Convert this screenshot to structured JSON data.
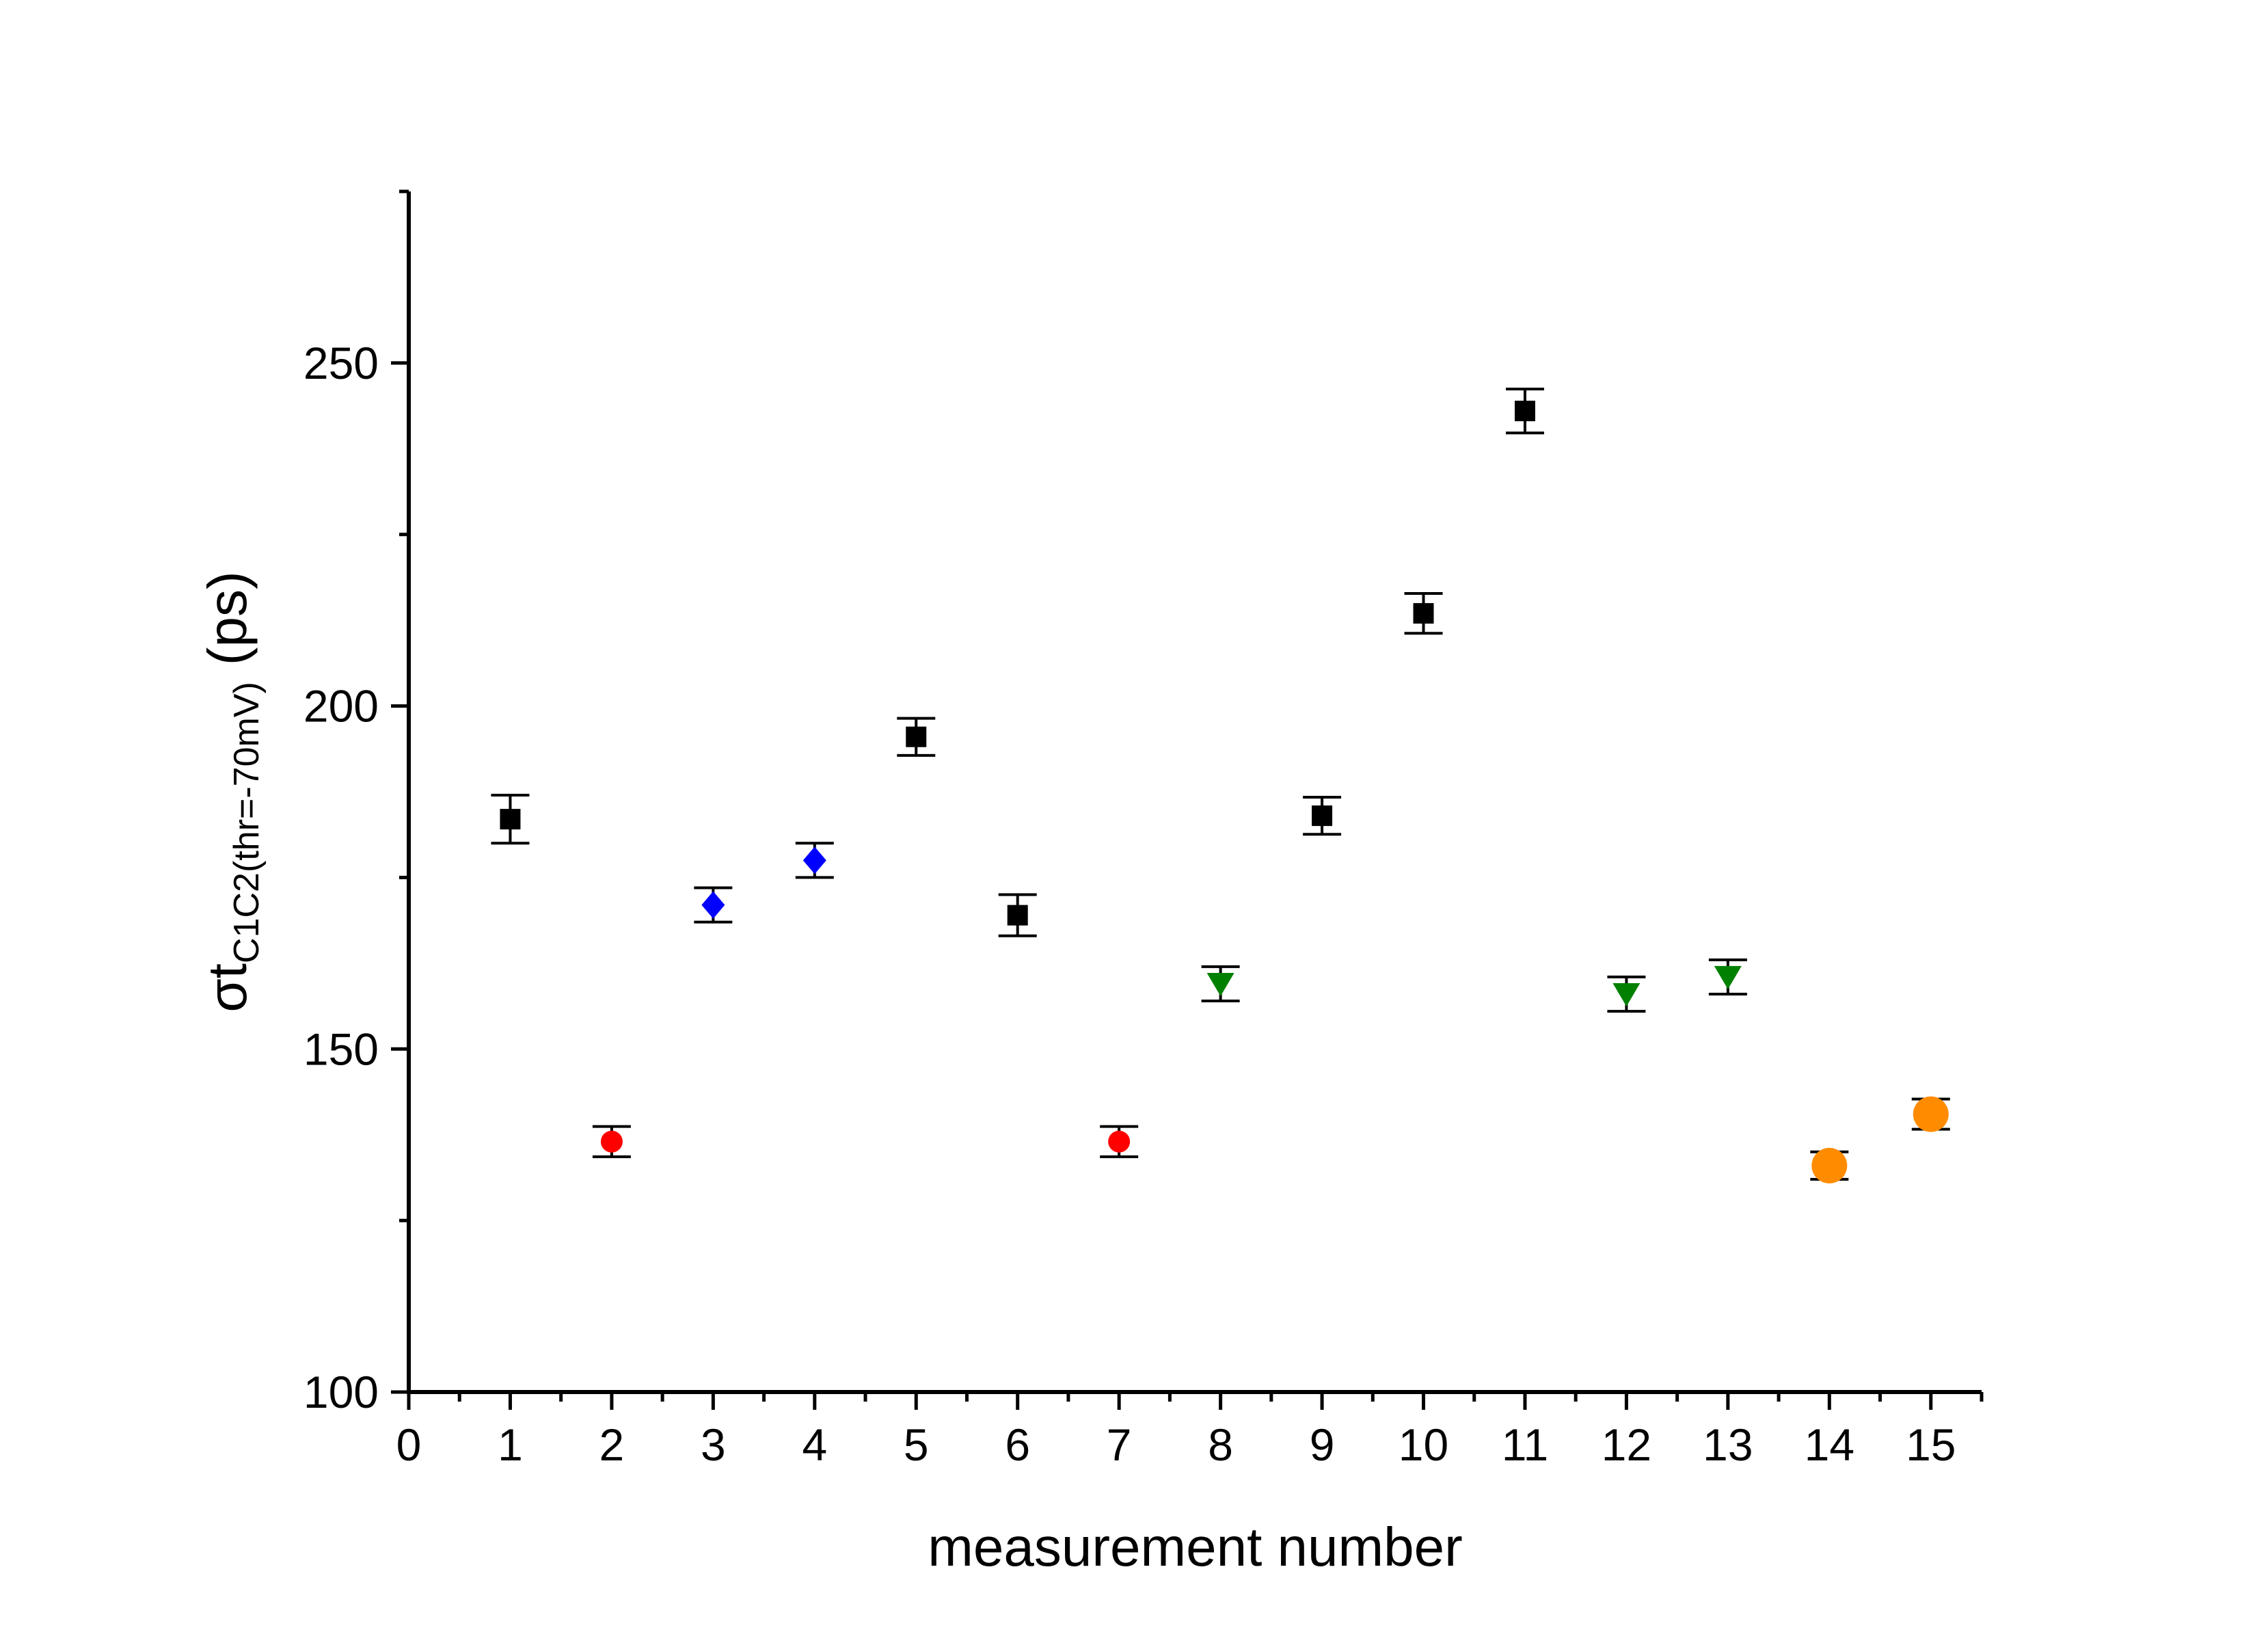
{
  "chart_data": {
    "type": "scatter",
    "xlabel": "measurement number",
    "ylabel": {
      "main": "σt",
      "subscript": "C1C2(thr=-70mV)",
      "unit": "(ps)"
    },
    "xlim": [
      0,
      15.5
    ],
    "ylim": [
      100,
      275
    ],
    "x_ticks": [
      "0",
      "1",
      "2",
      "3",
      "4",
      "5",
      "6",
      "7",
      "8",
      "9",
      "10",
      "11",
      "12",
      "13",
      "14",
      "15"
    ],
    "y_ticks": [
      "100",
      "150",
      "200",
      "250"
    ],
    "grid": false,
    "series": [
      {
        "marker": "square",
        "color": "#000000",
        "points": [
          {
            "x": 1,
            "y": 183.5,
            "err": 3.5
          },
          {
            "x": 5,
            "y": 195.5,
            "err": 2.7
          },
          {
            "x": 6,
            "y": 169.5,
            "err": 3.0
          },
          {
            "x": 9,
            "y": 184.0,
            "err": 2.7
          },
          {
            "x": 10,
            "y": 213.5,
            "err": 2.9
          },
          {
            "x": 11,
            "y": 243.0,
            "err": 3.2
          }
        ]
      },
      {
        "marker": "circle",
        "color": "#ff0000",
        "points": [
          {
            "x": 2,
            "y": 136.5,
            "err": 2.2
          },
          {
            "x": 7,
            "y": 136.5,
            "err": 2.2
          }
        ]
      },
      {
        "marker": "diamond",
        "color": "#0000ff",
        "points": [
          {
            "x": 3,
            "y": 171.0,
            "err": 2.5
          },
          {
            "x": 4,
            "y": 177.5,
            "err": 2.5
          }
        ]
      },
      {
        "marker": "triangle-down",
        "color": "#008000",
        "points": [
          {
            "x": 8,
            "y": 159.5,
            "err": 2.5
          },
          {
            "x": 12,
            "y": 158.0,
            "err": 2.5
          },
          {
            "x": 13,
            "y": 160.5,
            "err": 2.5
          }
        ]
      },
      {
        "marker": "circle-large",
        "color": "#ff8c00",
        "points": [
          {
            "x": 14,
            "y": 133.0,
            "err": 2.0
          },
          {
            "x": 15,
            "y": 140.5,
            "err": 2.2
          }
        ]
      }
    ]
  }
}
